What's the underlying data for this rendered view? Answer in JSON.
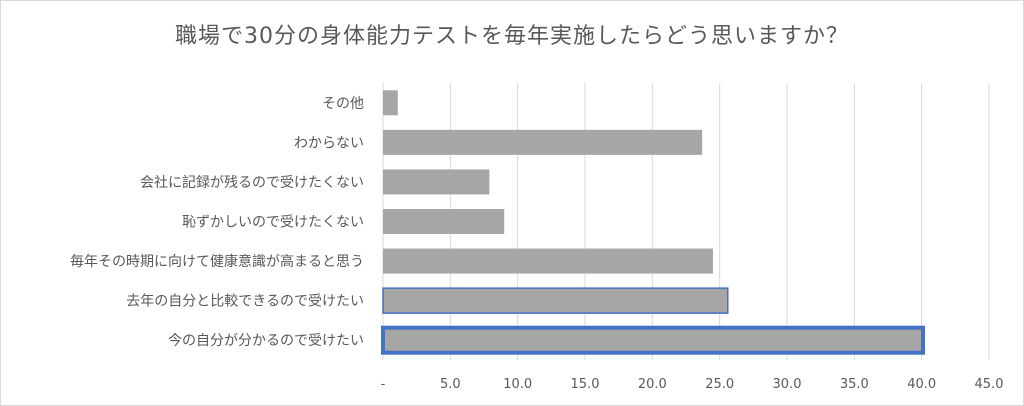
{
  "chart_data": {
    "type": "bar",
    "orientation": "horizontal",
    "title": "職場で30分の身体能力テストを毎年実施したらどう思いますか？",
    "categories": [
      "その他",
      "わからない",
      "会社に記録が残るので受けたくない",
      "恥ずかしいので受けたくない",
      "毎年その時期に向けて健康意識が高まると思う",
      "去年の自分と比較できるので受けたい",
      "今の自分が分かるので受けたい"
    ],
    "values": [
      1.1,
      23.7,
      7.9,
      9.0,
      24.5,
      25.6,
      40.1
    ],
    "xlim": [
      0,
      45
    ],
    "xticks": [
      0,
      5,
      10,
      15,
      20,
      25,
      30,
      35,
      40,
      45
    ],
    "xtick_labels": [
      "-",
      "5.0",
      "10.0",
      "15.0",
      "20.0",
      "25.0",
      "30.0",
      "35.0",
      "40.0",
      "45.0"
    ],
    "grid": true,
    "bar_color": "#a6a6a6",
    "highlight": [
      {
        "category": "去年の自分と比較できるので受けたい",
        "outline_color": "#4472c4",
        "style": "thin"
      },
      {
        "category": "今の自分が分かるので受けたい",
        "outline_color": "#4472c4",
        "style": "thick"
      }
    ]
  }
}
